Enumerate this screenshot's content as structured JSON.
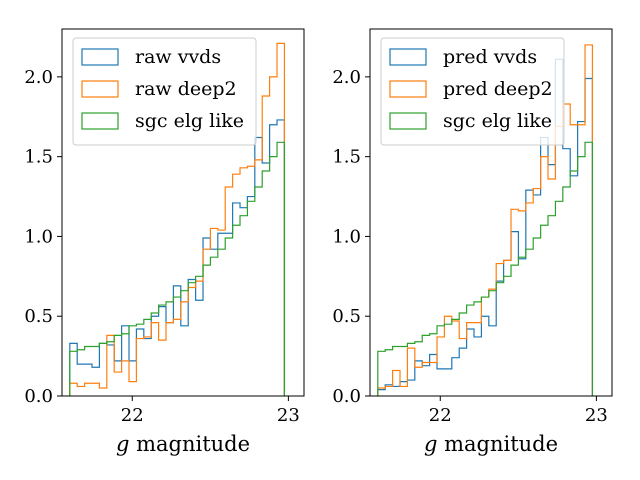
{
  "chart_data": [
    {
      "type": "histogram-step",
      "xlabel": "g magnitude",
      "xlabel_italic_part": "g",
      "xlabel_rest": " magnitude",
      "xlim": [
        21.55,
        23.1
      ],
      "ylim": [
        0,
        2.3
      ],
      "x_ticks": [
        22,
        23
      ],
      "x_tick_labels": [
        "22",
        "23"
      ],
      "y_ticks": [
        0,
        0.5,
        1.0,
        1.5,
        2.0
      ],
      "y_tick_labels": [
        "0.0",
        "0.5",
        "1.0",
        "1.5",
        "2.0"
      ],
      "legend_position": "upper-left",
      "bin_start": 21.6,
      "bin_width": 0.0474,
      "series": [
        {
          "name": "raw vvds",
          "color": "#1f77b4",
          "values": [
            0.33,
            0.2,
            0.2,
            0.18,
            0.33,
            0.32,
            0.22,
            0.44,
            0.22,
            0.42,
            0.36,
            0.5,
            0.56,
            0.46,
            0.69,
            0.44,
            0.73,
            0.6,
            0.99,
            0.92,
            1.02,
            1.02,
            1.21,
            1.18,
            1.25,
            1.62,
            1.46,
            1.7,
            1.73
          ]
        },
        {
          "name": "raw deep2",
          "color": "#ff7f0e",
          "values": [
            0.08,
            0.06,
            0.08,
            0.08,
            0.05,
            0.38,
            0.15,
            0.22,
            0.09,
            0.36,
            0.37,
            0.46,
            0.35,
            0.46,
            0.48,
            0.59,
            0.68,
            0.72,
            0.92,
            1.05,
            1.04,
            1.31,
            1.39,
            1.43,
            1.44,
            1.48,
            1.88,
            2.0,
            2.21
          ]
        },
        {
          "name": "sgc elg like",
          "color": "#2ca02c",
          "values": [
            0.28,
            0.29,
            0.31,
            0.31,
            0.33,
            0.34,
            0.38,
            0.39,
            0.44,
            0.45,
            0.48,
            0.52,
            0.57,
            0.59,
            0.62,
            0.66,
            0.71,
            0.75,
            0.82,
            0.87,
            0.92,
            0.99,
            1.07,
            1.13,
            1.22,
            1.31,
            1.41,
            1.5,
            1.59
          ]
        }
      ]
    },
    {
      "type": "histogram-step",
      "xlabel": "g magnitude",
      "xlabel_italic_part": "g",
      "xlabel_rest": " magnitude",
      "xlim": [
        21.55,
        23.1
      ],
      "ylim": [
        0,
        2.3
      ],
      "x_ticks": [
        22,
        23
      ],
      "x_tick_labels": [
        "22",
        "23"
      ],
      "y_ticks": [
        0,
        0.5,
        1.0,
        1.5,
        2.0
      ],
      "y_tick_labels": [
        "0.0",
        "0.5",
        "1.0",
        "1.5",
        "2.0"
      ],
      "legend_position": "upper-left",
      "bin_start": 21.6,
      "bin_width": 0.0474,
      "series": [
        {
          "name": "pred vvds",
          "color": "#1f77b4",
          "values": [
            0.04,
            0.07,
            0.06,
            0.09,
            0.1,
            0.22,
            0.19,
            0.26,
            0.17,
            0.17,
            0.24,
            0.3,
            0.42,
            0.37,
            0.5,
            0.44,
            0.72,
            0.85,
            1.03,
            0.86,
            1.29,
            1.26,
            1.62,
            1.45,
            2.11,
            1.55,
            1.38,
            1.72,
            1.99
          ]
        },
        {
          "name": "pred deep2",
          "color": "#ff7f0e",
          "values": [
            0.05,
            0.06,
            0.16,
            0.06,
            0.3,
            0.18,
            0.21,
            0.21,
            0.37,
            0.5,
            0.47,
            0.36,
            0.46,
            0.46,
            0.62,
            0.67,
            0.83,
            0.85,
            1.17,
            1.16,
            1.21,
            1.3,
            1.5,
            1.36,
            1.69,
            1.83,
            1.7,
            1.7,
            2.2
          ]
        },
        {
          "name": "sgc elg like",
          "color": "#2ca02c",
          "values": [
            0.28,
            0.29,
            0.31,
            0.31,
            0.33,
            0.34,
            0.38,
            0.39,
            0.44,
            0.45,
            0.48,
            0.52,
            0.57,
            0.59,
            0.62,
            0.66,
            0.71,
            0.75,
            0.82,
            0.87,
            0.92,
            0.99,
            1.07,
            1.13,
            1.22,
            1.31,
            1.41,
            1.5,
            1.59
          ]
        }
      ]
    }
  ]
}
